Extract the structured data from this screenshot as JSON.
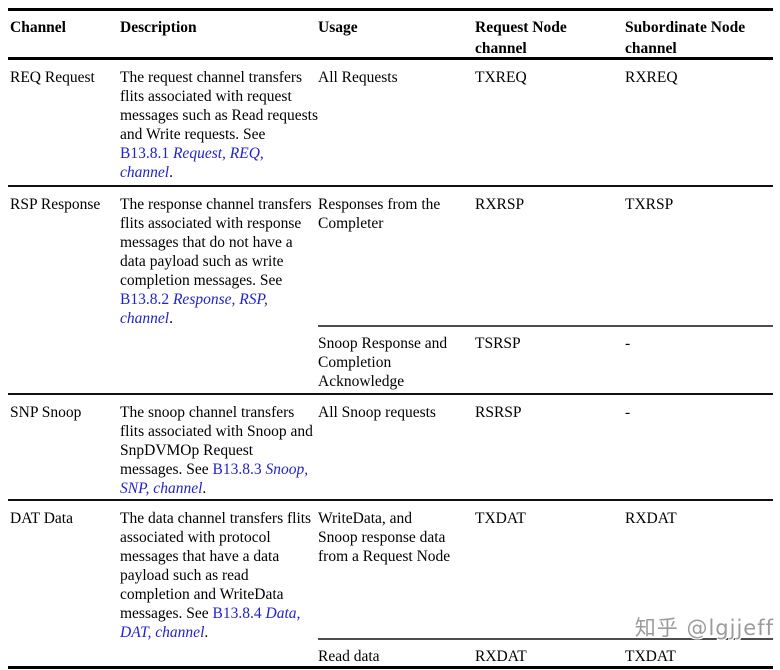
{
  "colors": {
    "link_blue": "#2222cc",
    "text_black": "#000000",
    "rule_black": "#000000",
    "subrule_gray": "#4d4d4d",
    "watermark_gray": "#9b9b9b"
  },
  "table": {
    "headers": [
      "Channel",
      "Description",
      "Usage",
      "Request Node channel",
      "Subordinate Node channel"
    ],
    "rows": [
      {
        "channel": "REQ Request",
        "description": {
          "text": "The request channel transfers flits associated with request messages such as Read requests and Write requests. See",
          "ref": "B13.8.1",
          "ref_italic": "Request, REQ, channel",
          "period": "."
        },
        "subrows": [
          {
            "usage": "All Requests",
            "request_node": "TXREQ",
            "subordinate_node": "RXREQ"
          }
        ]
      },
      {
        "channel": "RSP Response",
        "description": {
          "text": "The response channel transfers flits associated with response messages that do not have a data payload such as write completion messages. See",
          "ref": "B13.8.2",
          "ref_italic": "Response, RSP, channel",
          "period": "."
        },
        "subrows": [
          {
            "usage": "Responses from the Completer",
            "request_node": "RXRSP",
            "subordinate_node": "TXRSP"
          },
          {
            "usage": "Snoop Response and Completion Acknowledge",
            "request_node": "TSRSP",
            "subordinate_node": "-"
          }
        ]
      },
      {
        "channel": "SNP Snoop",
        "description": {
          "text": "The snoop channel transfers flits associated with Snoop and SnpDVMOp Request messages. See",
          "ref": "B13.8.3",
          "ref_italic": "Snoop, SNP, channel",
          "period": "."
        },
        "subrows": [
          {
            "usage": "All Snoop requests",
            "request_node": "RSRSP",
            "subordinate_node": "-"
          }
        ]
      },
      {
        "channel": "DAT Data",
        "description": {
          "text": "The data channel transfers flits associated with protocol messages that have a data payload such as read completion and WriteData messages. See",
          "ref": "B13.8.4",
          "ref_italic": "Data, DAT, channel",
          "period": "."
        },
        "subrows": [
          {
            "usage": "WriteData, and Snoop response data from a Request Node",
            "request_node": "TXDAT",
            "subordinate_node": "RXDAT"
          },
          {
            "usage": "Read data",
            "request_node": "RXDAT",
            "subordinate_node": "TXDAT"
          }
        ]
      }
    ]
  },
  "watermark": "知乎 @lgjjeff"
}
